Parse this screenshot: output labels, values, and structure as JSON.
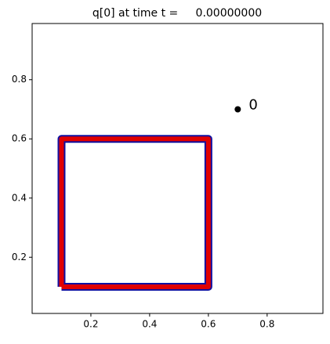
{
  "chart_data": {
    "type": "line",
    "title": "q[0] at time t =     0.00000000",
    "xlim": [
      0.0,
      0.99
    ],
    "ylim": [
      0.01,
      0.99
    ],
    "xticks": [
      0.2,
      0.4,
      0.6,
      0.8
    ],
    "yticks": [
      0.2,
      0.4,
      0.6,
      0.8
    ],
    "series": [
      {
        "color": "#e00000",
        "edge_color": "#1010a0",
        "x": [
          0.1,
          0.6,
          0.6,
          0.1,
          0.1
        ],
        "values": [
          0.1,
          0.1,
          0.6,
          0.6,
          0.1
        ]
      }
    ],
    "points": {
      "color": "#000000",
      "x": [
        0.7
      ],
      "values": [
        0.7
      ],
      "labels": [
        "0"
      ]
    }
  }
}
